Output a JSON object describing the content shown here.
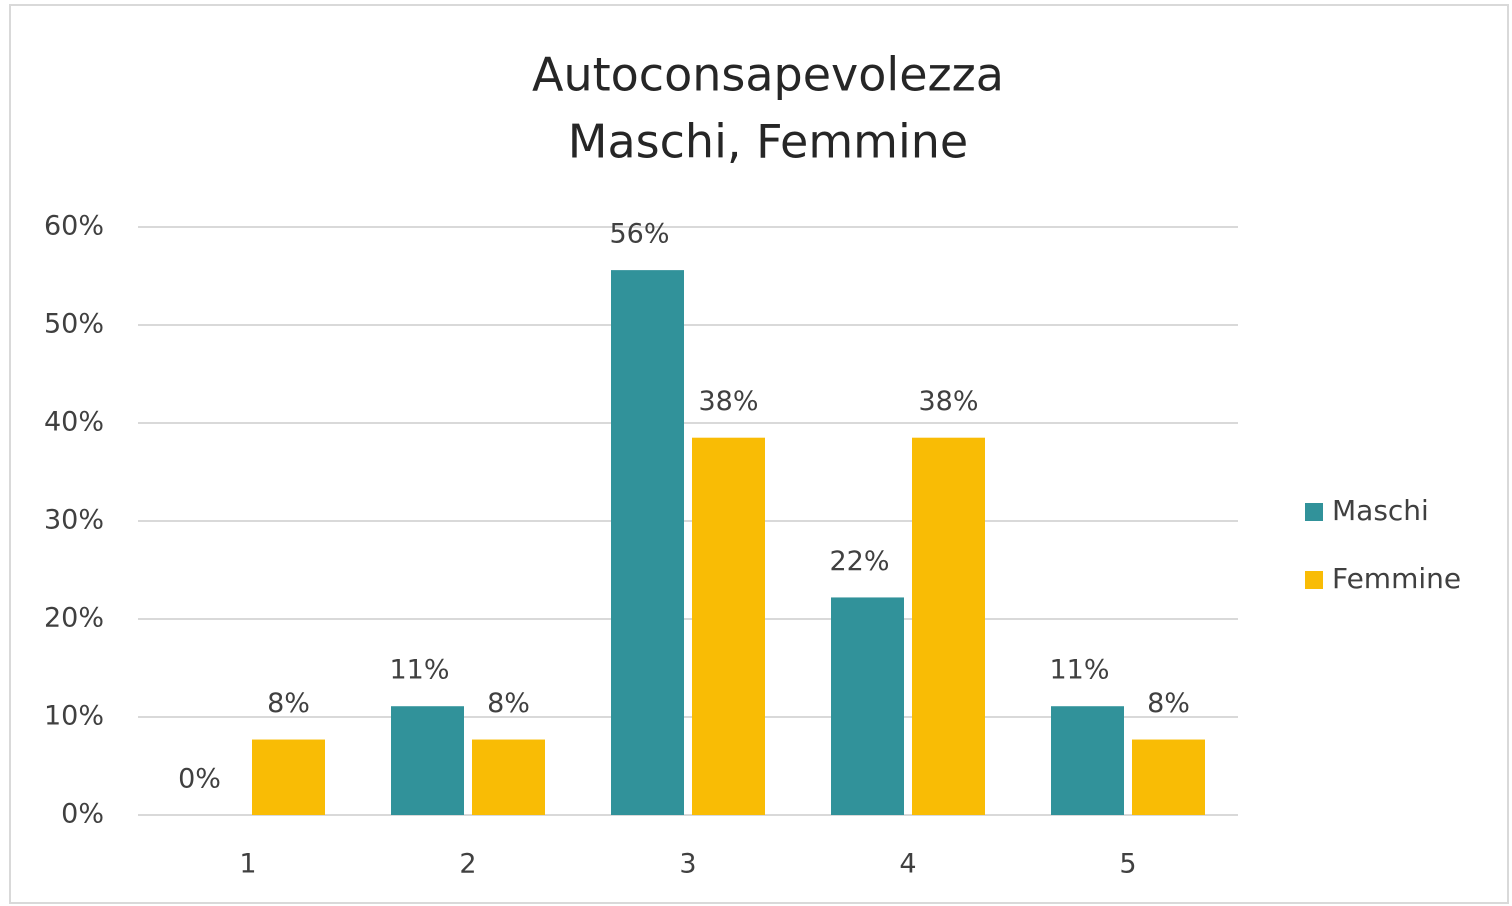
{
  "chart_data": {
    "type": "bar",
    "title": "Autoconsapevolezza",
    "subtitle": "Maschi, Femmine",
    "categories": [
      "1",
      "2",
      "3",
      "4",
      "5"
    ],
    "series": [
      {
        "name": "Maschi",
        "color": "#31929a",
        "values": [
          0,
          11.1,
          55.6,
          22.2,
          11.1
        ],
        "value_labels": [
          "0%",
          "11%",
          "56%",
          "22%",
          "11%"
        ]
      },
      {
        "name": "Femmine",
        "color": "#f9bc05",
        "values": [
          7.7,
          7.7,
          38.5,
          38.5,
          7.7
        ],
        "value_labels": [
          "8%",
          "8%",
          "38%",
          "38%",
          "8%"
        ]
      }
    ],
    "ylim": [
      0,
      60
    ],
    "yticks": [
      {
        "value": 0,
        "label": "0%"
      },
      {
        "value": 10,
        "label": "10%"
      },
      {
        "value": 20,
        "label": "20%"
      },
      {
        "value": 30,
        "label": "30%"
      },
      {
        "value": 40,
        "label": "40%"
      },
      {
        "value": 50,
        "label": "50%"
      },
      {
        "value": 60,
        "label": "60%"
      }
    ],
    "grid": true,
    "legend": "right"
  }
}
